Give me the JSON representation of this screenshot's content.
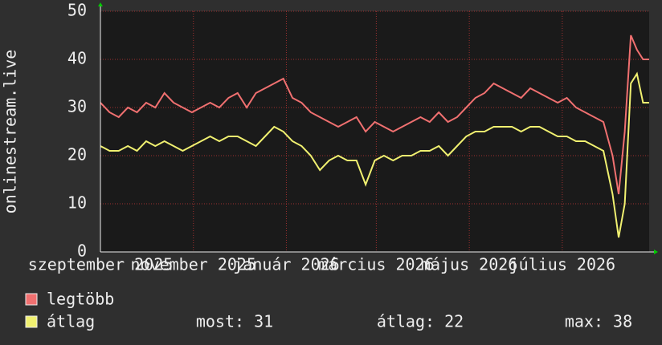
{
  "chart_data": {
    "type": "line",
    "y_label": "onlinestream.live",
    "x": [
      0,
      6,
      12,
      18,
      24,
      30,
      36,
      42,
      48,
      54,
      60,
      66,
      72,
      78,
      84,
      90,
      96,
      102,
      108,
      114,
      120,
      126,
      132,
      138,
      144,
      150,
      156,
      162,
      168,
      174,
      180,
      186,
      192,
      198,
      204,
      210,
      216,
      222,
      228,
      234,
      240,
      246,
      252,
      258,
      264,
      270,
      276,
      282,
      288,
      294,
      300,
      306,
      312,
      318,
      324,
      330,
      336,
      340,
      344,
      348,
      352,
      356,
      360
    ],
    "series": [
      {
        "name": "legtöbb",
        "color": "#f07070",
        "values": [
          31,
          29,
          28,
          30,
          29,
          31,
          30,
          33,
          31,
          30,
          29,
          30,
          31,
          30,
          32,
          33,
          30,
          33,
          34,
          35,
          36,
          32,
          31,
          29,
          28,
          27,
          26,
          27,
          28,
          25,
          27,
          26,
          25,
          26,
          27,
          28,
          27,
          29,
          27,
          28,
          30,
          32,
          33,
          35,
          34,
          33,
          32,
          34,
          33,
          32,
          31,
          32,
          30,
          29,
          28,
          27,
          20,
          12,
          25,
          45,
          42,
          40,
          40
        ]
      },
      {
        "name": "átlag",
        "color": "#f0f070",
        "values": [
          22,
          21,
          21,
          22,
          21,
          23,
          22,
          23,
          22,
          21,
          22,
          23,
          24,
          23,
          24,
          24,
          23,
          22,
          24,
          26,
          25,
          23,
          22,
          20,
          17,
          19,
          20,
          19,
          19,
          14,
          19,
          20,
          19,
          20,
          20,
          21,
          21,
          22,
          20,
          22,
          24,
          25,
          25,
          26,
          26,
          26,
          25,
          26,
          26,
          25,
          24,
          24,
          23,
          23,
          22,
          21,
          12,
          3,
          10,
          35,
          37,
          31,
          31
        ]
      }
    ],
    "xlim": [
      0,
      360
    ],
    "xticks": [
      {
        "value": 0,
        "label": "szeptember 2025"
      },
      {
        "value": 61,
        "label": "november 2025"
      },
      {
        "value": 122,
        "label": "január 2026"
      },
      {
        "value": 181,
        "label": "március 2026"
      },
      {
        "value": 242,
        "label": "május 2026"
      },
      {
        "value": 303,
        "label": "július 2026"
      }
    ],
    "ylim": [
      0,
      50
    ],
    "yticks": [
      0,
      10,
      20,
      30,
      40,
      50
    ],
    "grid": true,
    "stats": [
      "most: 31",
      "átlag: 22",
      "max: 38"
    ]
  }
}
